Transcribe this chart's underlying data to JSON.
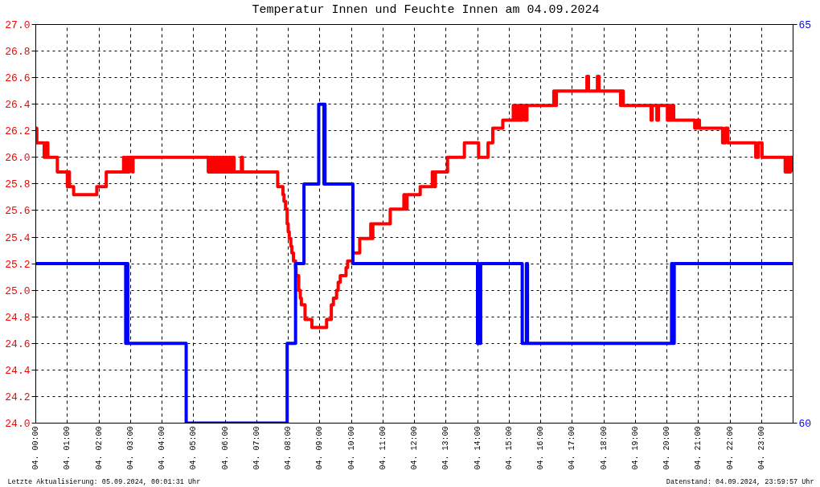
{
  "chart_data": {
    "type": "step",
    "title": "Temperatur Innen und Feuchte Innen am 04.09.2024",
    "xlim": [
      "2024-09-04T00:00",
      "2024-09-05T00:00"
    ],
    "xticks": [
      {
        "value": "2024-09-04T00:00",
        "label": "04. 00:00"
      },
      {
        "value": "2024-09-04T01:00",
        "label": "04. 01:00"
      },
      {
        "value": "2024-09-04T02:00",
        "label": "04. 02:00"
      },
      {
        "value": "2024-09-04T03:00",
        "label": "04. 03:00"
      },
      {
        "value": "2024-09-04T04:00",
        "label": "04. 04:00"
      },
      {
        "value": "2024-09-04T05:00",
        "label": "04. 05:00"
      },
      {
        "value": "2024-09-04T06:00",
        "label": "04. 06:00"
      },
      {
        "value": "2024-09-04T07:00",
        "label": "04. 07:00"
      },
      {
        "value": "2024-09-04T08:00",
        "label": "04. 08:00"
      },
      {
        "value": "2024-09-04T09:00",
        "label": "04. 09:00"
      },
      {
        "value": "2024-09-04T10:00",
        "label": "04. 10:00"
      },
      {
        "value": "2024-09-04T11:00",
        "label": "04. 11:00"
      },
      {
        "value": "2024-09-04T12:00",
        "label": "04. 12:00"
      },
      {
        "value": "2024-09-04T13:00",
        "label": "04. 13:00"
      },
      {
        "value": "2024-09-04T14:00",
        "label": "04. 14:00"
      },
      {
        "value": "2024-09-04T15:00",
        "label": "04. 15:00"
      },
      {
        "value": "2024-09-04T16:00",
        "label": "04. 16:00"
      },
      {
        "value": "2024-09-04T17:00",
        "label": "04. 17:00"
      },
      {
        "value": "2024-09-04T18:00",
        "label": "04. 18:00"
      },
      {
        "value": "2024-09-04T19:00",
        "label": "04. 19:00"
      },
      {
        "value": "2024-09-04T20:00",
        "label": "04. 20:00"
      },
      {
        "value": "2024-09-04T21:00",
        "label": "04. 21:00"
      },
      {
        "value": "2024-09-04T22:00",
        "label": "04. 22:00"
      },
      {
        "value": "2024-09-04T23:00",
        "label": "04. 23:00"
      }
    ],
    "ylim": [
      24.0,
      27.0
    ],
    "yticks": [
      {
        "value": 24,
        "label": "24.0"
      },
      24.2,
      24.4,
      24.6,
      24.8,
      {
        "value": 25,
        "label": "25.0"
      },
      25.2,
      25.4,
      25.6,
      25.8,
      {
        "value": 26,
        "label": "26.0"
      },
      26.2,
      26.4,
      26.6,
      26.8,
      {
        "value": 27,
        "label": "27.0"
      }
    ],
    "y2lim": [
      60,
      65
    ],
    "y2ticks": [
      60,
      65
    ],
    "grid": true,
    "series": [
      {
        "color": "#ff0000",
        "x": [
          "2024-09-04T00:00",
          "2024-09-04T00:02",
          "2024-09-04T00:16",
          "2024-09-04T00:19",
          "2024-09-04T00:23",
          "2024-09-04T00:41",
          "2024-09-04T01:00",
          "2024-09-04T01:02",
          "2024-09-04T01:04",
          "2024-09-04T01:12",
          "2024-09-04T01:56",
          "2024-09-04T02:14",
          "2024-09-04T02:47",
          "2024-09-04T02:49",
          "2024-09-04T02:53",
          "2024-09-04T02:56",
          "2024-09-04T02:58",
          "2024-09-04T03:04",
          "2024-09-04T03:05",
          "2024-09-04T05:28",
          "2024-09-04T05:31",
          "2024-09-04T05:34",
          "2024-09-04T05:37",
          "2024-09-04T05:40",
          "2024-09-04T05:43",
          "2024-09-04T05:46",
          "2024-09-04T05:49",
          "2024-09-04T05:52",
          "2024-09-04T05:55",
          "2024-09-04T05:58",
          "2024-09-04T06:01",
          "2024-09-04T06:04",
          "2024-09-04T06:07",
          "2024-09-04T06:10",
          "2024-09-04T06:13",
          "2024-09-04T06:17",
          "2024-09-04T06:31",
          "2024-09-04T06:33",
          "2024-09-04T07:40",
          "2024-09-04T07:50",
          "2024-09-04T07:52",
          "2024-09-04T07:55",
          "2024-09-04T07:58",
          "2024-09-04T08:00",
          "2024-09-04T08:02",
          "2024-09-04T08:05",
          "2024-09-04T08:07",
          "2024-09-04T08:10",
          "2024-09-04T08:14",
          "2024-09-04T08:15",
          "2024-09-04T08:20",
          "2024-09-04T08:23",
          "2024-09-04T08:25",
          "2024-09-04T08:32",
          "2024-09-04T08:45",
          "2024-09-04T09:13",
          "2024-09-04T09:22",
          "2024-09-04T09:26",
          "2024-09-04T09:32",
          "2024-09-04T09:35",
          "2024-09-04T09:39",
          "2024-09-04T09:50",
          "2024-09-04T09:53",
          "2024-09-04T10:03",
          "2024-09-04T10:16",
          "2024-09-04T10:37",
          "2024-09-04T10:38",
          "2024-09-04T10:41",
          "2024-09-04T11:14",
          "2024-09-04T11:40",
          "2024-09-04T11:43",
          "2024-09-04T11:46",
          "2024-09-04T12:11",
          "2024-09-04T12:34",
          "2024-09-04T12:37",
          "2024-09-04T12:40",
          "2024-09-04T13:03",
          "2024-09-04T13:35",
          "2024-09-04T14:02",
          "2024-09-04T14:20",
          "2024-09-04T14:29",
          "2024-09-04T14:48",
          "2024-09-04T15:08",
          "2024-09-04T15:12",
          "2024-09-04T15:17",
          "2024-09-04T15:21",
          "2024-09-04T15:25",
          "2024-09-04T15:30",
          "2024-09-04T15:34",
          "2024-09-04T16:25",
          "2024-09-04T16:28",
          "2024-09-04T16:30",
          "2024-09-04T17:28",
          "2024-09-04T17:31",
          "2024-09-04T17:48",
          "2024-09-04T17:51",
          "2024-09-04T18:32",
          "2024-09-04T18:34",
          "2024-09-04T18:37",
          "2024-09-04T19:30",
          "2024-09-04T19:32",
          "2024-09-04T19:41",
          "2024-09-04T19:44",
          "2024-09-04T20:01",
          "2024-09-04T20:04",
          "2024-09-04T20:07",
          "2024-09-04T20:10",
          "2024-09-04T20:13",
          "2024-09-04T20:53",
          "2024-09-04T20:57",
          "2024-09-04T21:02",
          "2024-09-04T21:46",
          "2024-09-04T21:51",
          "2024-09-04T21:56",
          "2024-09-04T22:49",
          "2024-09-04T22:54",
          "2024-09-04T23:01",
          "2024-09-04T23:45",
          "2024-09-04T23:48",
          "2024-09-04T23:52",
          "2024-09-04T23:55",
          "2024-09-04T23:59"
        ],
        "values": [
          26.22,
          26.11,
          26.0,
          26.11,
          26.0,
          25.89,
          25.78,
          25.89,
          25.78,
          25.72,
          25.78,
          25.89,
          26.0,
          25.89,
          26.0,
          25.89,
          26.0,
          25.89,
          26.0,
          25.89,
          26.0,
          25.89,
          26.0,
          25.89,
          26.0,
          25.89,
          26.0,
          25.89,
          26.0,
          25.89,
          26.0,
          25.89,
          26.0,
          25.89,
          26.0,
          25.89,
          26.0,
          25.89,
          25.78,
          25.72,
          25.67,
          25.61,
          25.5,
          25.44,
          25.39,
          25.33,
          25.28,
          25.22,
          25.17,
          25.11,
          25.0,
          24.94,
          24.89,
          24.78,
          24.72,
          24.78,
          24.89,
          24.94,
          25.0,
          25.06,
          25.11,
          25.17,
          25.22,
          25.28,
          25.39,
          25.5,
          25.39,
          25.5,
          25.61,
          25.72,
          25.61,
          25.72,
          25.78,
          25.89,
          25.78,
          25.89,
          26.0,
          26.11,
          26.0,
          26.11,
          26.22,
          26.28,
          26.39,
          26.28,
          26.39,
          26.28,
          26.39,
          26.28,
          26.39,
          26.5,
          26.39,
          26.5,
          26.61,
          26.5,
          26.61,
          26.5,
          26.39,
          26.5,
          26.39,
          26.28,
          26.39,
          26.28,
          26.39,
          26.28,
          26.39,
          26.28,
          26.39,
          26.28,
          26.22,
          26.28,
          26.22,
          26.11,
          26.22,
          26.11,
          26.0,
          26.11,
          26.0,
          25.89,
          26.0,
          25.89,
          26.0,
          25.89
        ]
      },
      {
        "color": "#0000ff",
        "axis": "y2",
        "x": [
          "2024-09-04T00:00",
          "2024-09-04T02:51",
          "2024-09-04T02:53",
          "2024-09-04T02:55",
          "2024-09-04T04:46",
          "2024-09-04T07:58",
          "2024-09-04T08:14",
          "2024-09-04T08:30",
          "2024-09-04T08:58",
          "2024-09-04T09:08",
          "2024-09-04T09:09",
          "2024-09-04T09:10",
          "2024-09-04T10:03",
          "2024-09-04T14:00",
          "2024-09-04T14:02",
          "2024-09-04T14:03",
          "2024-09-04T14:06",
          "2024-09-04T15:25",
          "2024-09-04T15:33",
          "2024-09-04T15:35",
          "2024-09-04T20:09",
          "2024-09-04T20:11",
          "2024-09-04T20:14",
          "2024-09-04T23:59"
        ],
        "values": [
          62,
          61,
          62,
          61,
          60,
          61,
          62,
          63,
          64,
          63,
          64,
          63,
          62,
          61,
          62,
          61,
          62,
          61,
          62,
          61,
          62,
          61,
          62,
          62
        ]
      }
    ],
    "annotations": [
      "Letzte Aktualisierung: 05.09.2024, 00:01:31 Uhr",
      "Datenstand: 04.09.2024, 23:59:57 Uhr"
    ]
  }
}
